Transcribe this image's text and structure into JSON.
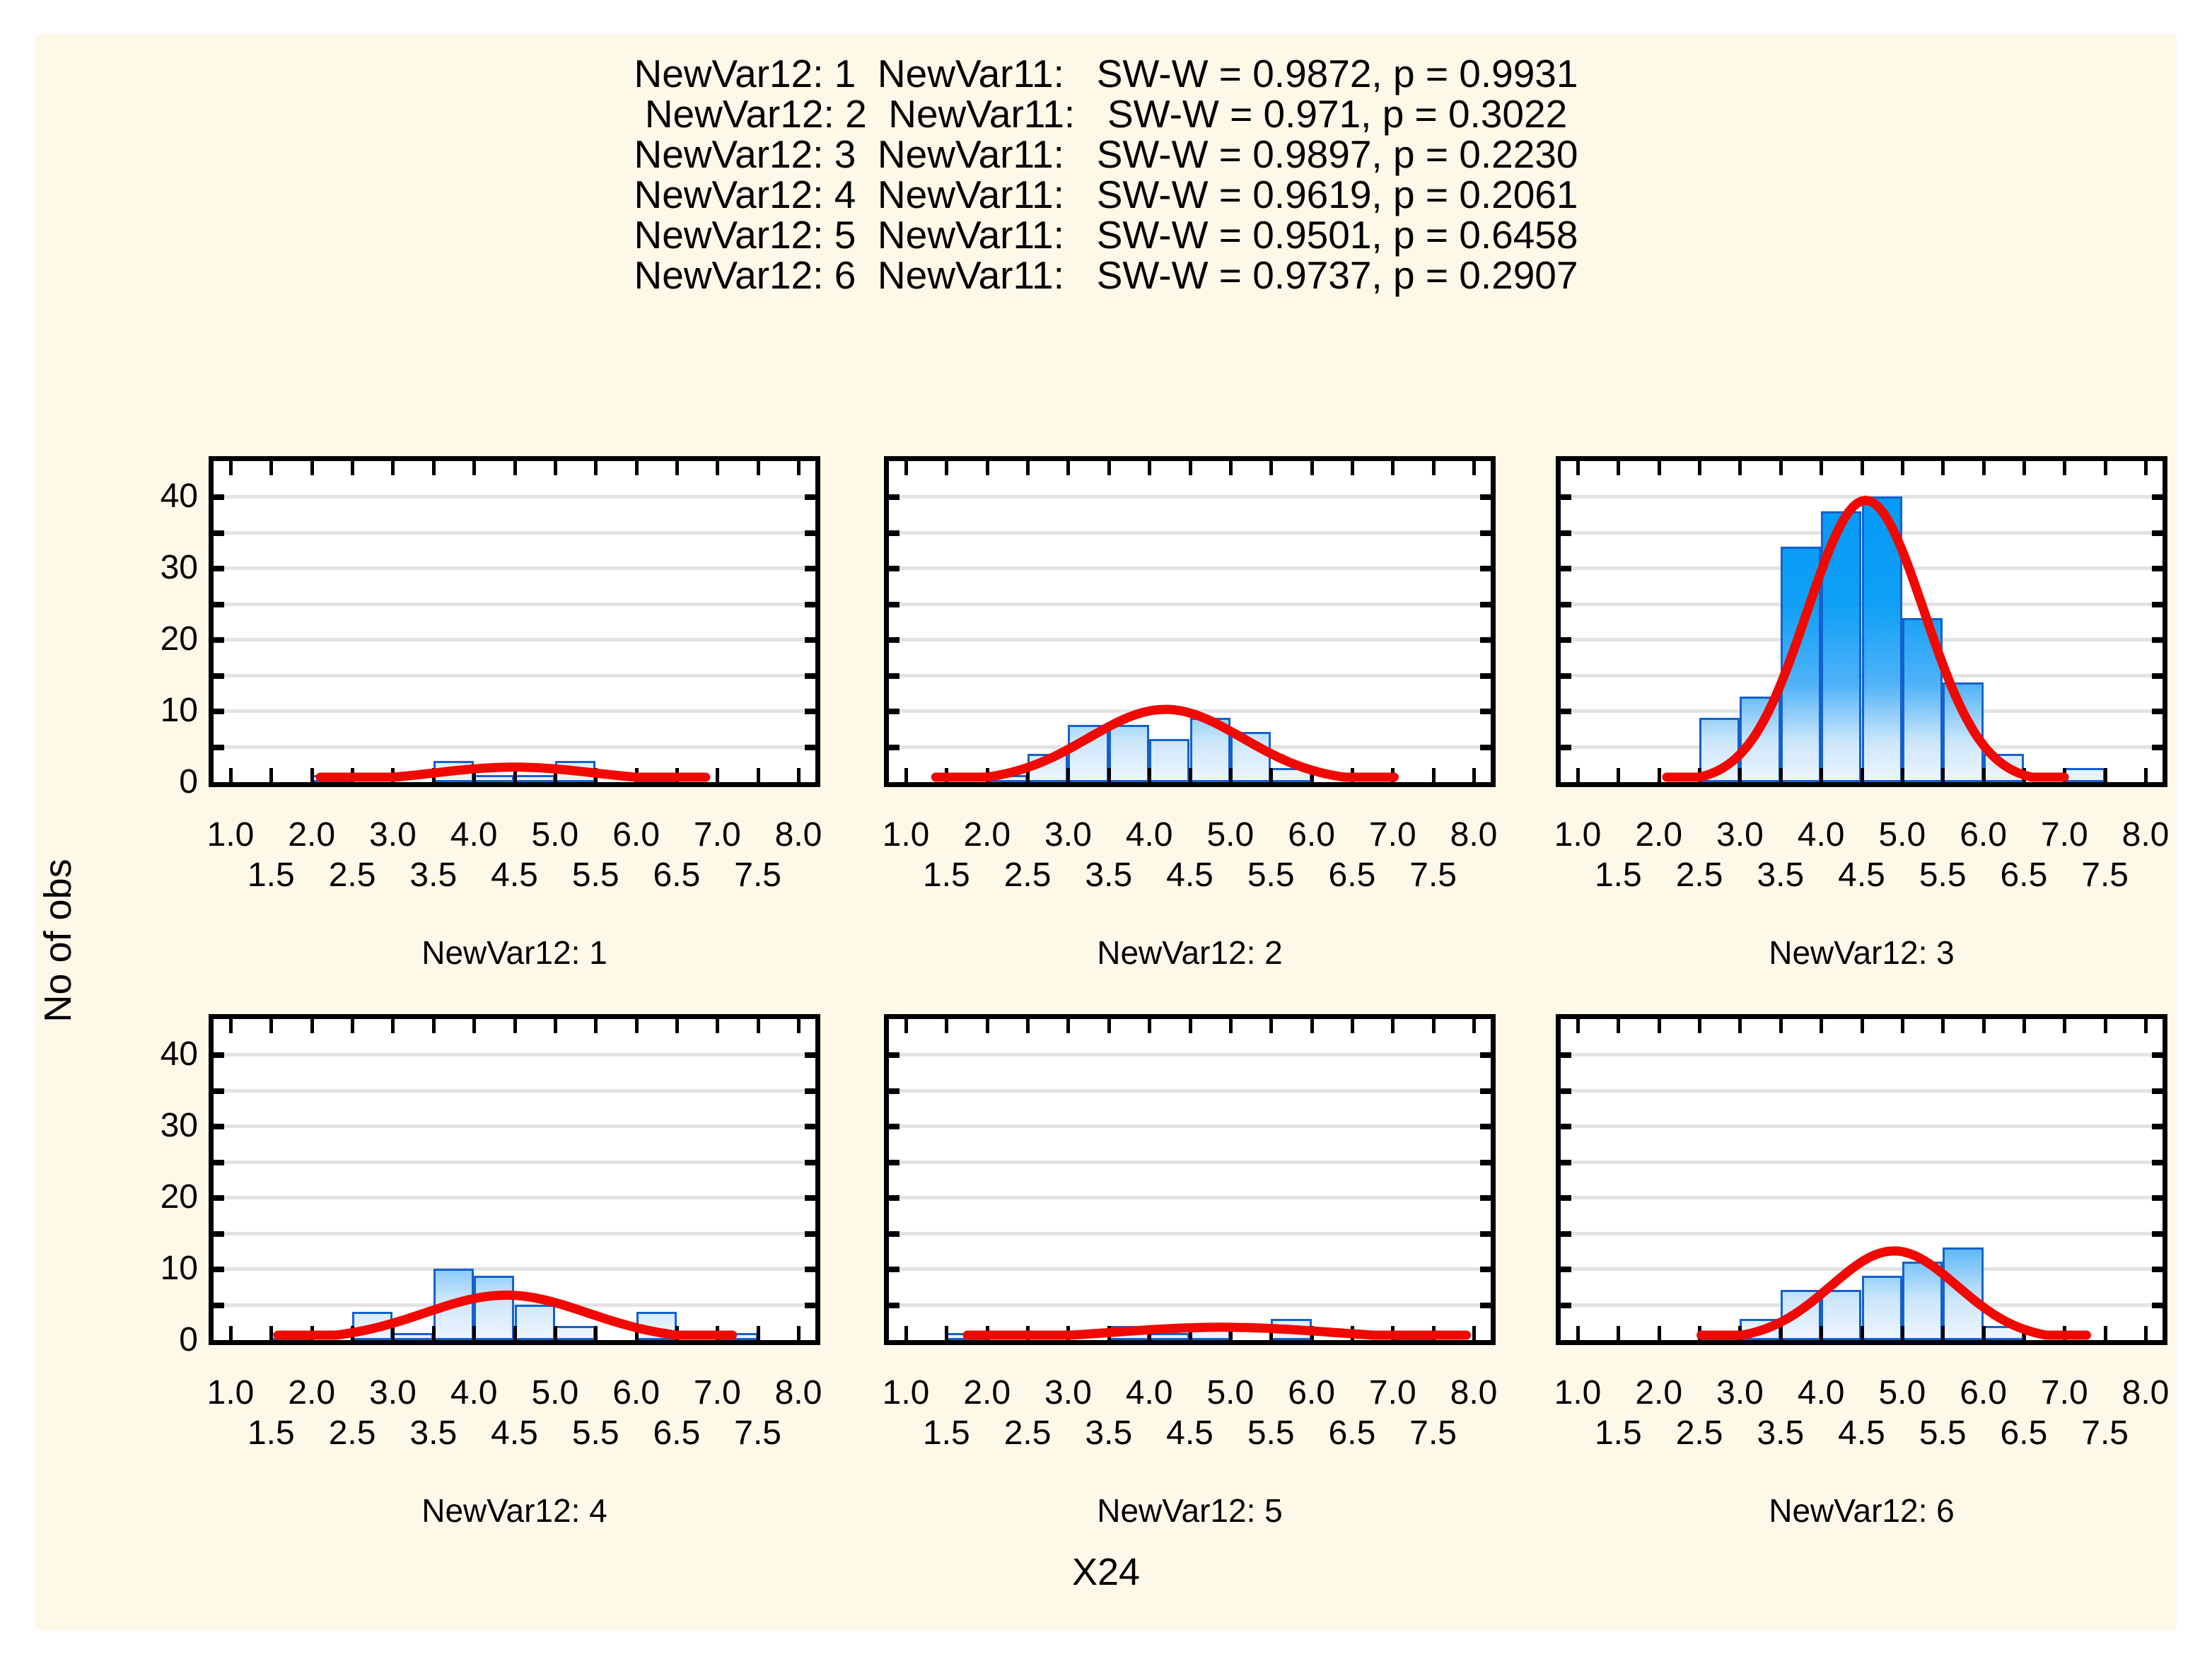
{
  "header": {
    "lines": [
      "NewVar12: 1  NewVar11:   SW-W = 0.9872, p = 0.9931",
      "NewVar12: 2  NewVar11:   SW-W = 0.971, p = 0.3022",
      "NewVar12: 3  NewVar11:   SW-W = 0.9897, p = 0.2230",
      "NewVar12: 4  NewVar11:   SW-W = 0.9619, p = 0.2061",
      "NewVar12: 5  NewVar11:   SW-W = 0.9501, p = 0.6458",
      "NewVar12: 6  NewVar11:   SW-W = 0.9737, p = 0.2907"
    ]
  },
  "axis": {
    "y_label": "No of obs",
    "x_label": "X24",
    "x_major_labels": [
      "1.0",
      "2.0",
      "3.0",
      "4.0",
      "5.0",
      "6.0",
      "7.0",
      "8.0"
    ],
    "x_minor_labels": [
      "1.5",
      "2.5",
      "3.5",
      "4.5",
      "5.5",
      "6.5",
      "7.5"
    ],
    "y_tick_labels": [
      "0",
      "10",
      "20",
      "30",
      "40"
    ],
    "x_range": [
      1.0,
      8.0
    ],
    "y_range": [
      0,
      45
    ],
    "x_tick_step": 0.5,
    "y_grid_step": 5
  },
  "colors": {
    "page_bg": "#FFFFFF",
    "panel_bg": "#FEF8E8",
    "plot_bg": "#FFFFFF",
    "gridline": "#E3E3E3",
    "axis": "#000000",
    "bar_border": "#1461CD",
    "bar_fill_top": "#0098F8",
    "bar_fill_bottom": "#EDF5FD",
    "curve": "#F10800",
    "text": "#000000"
  },
  "chart_data": [
    {
      "type": "bar",
      "subtype": "histogram-with-normal-curve",
      "title": "NewVar12: 1",
      "sw_w": 0.9872,
      "p": 0.9931,
      "bin_width": 0.5,
      "bins": [
        {
          "x": 2.0,
          "count": 1
        },
        {
          "x": 3.5,
          "count": 3
        },
        {
          "x": 4.0,
          "count": 1
        },
        {
          "x": 4.5,
          "count": 1
        },
        {
          "x": 5.0,
          "count": 3
        },
        {
          "x": 6.0,
          "count": 1
        }
      ],
      "normal_curve": {
        "peak": 2.1,
        "mean": 4.5,
        "sd": 1.0
      }
    },
    {
      "type": "bar",
      "subtype": "histogram-with-normal-curve",
      "title": "NewVar12: 2",
      "sw_w": 0.971,
      "p": 0.3022,
      "bin_width": 0.5,
      "bins": [
        {
          "x": 2.0,
          "count": 1
        },
        {
          "x": 2.5,
          "count": 4
        },
        {
          "x": 3.0,
          "count": 8
        },
        {
          "x": 3.5,
          "count": 8
        },
        {
          "x": 4.0,
          "count": 6
        },
        {
          "x": 4.5,
          "count": 9
        },
        {
          "x": 5.0,
          "count": 7
        },
        {
          "x": 5.5,
          "count": 2
        }
      ],
      "normal_curve": {
        "peak": 10.2,
        "mean": 4.2,
        "sd": 0.95
      }
    },
    {
      "type": "bar",
      "subtype": "histogram-with-normal-curve",
      "title": "NewVar12: 3",
      "sw_w": 0.9897,
      "p": 0.223,
      "bin_width": 0.5,
      "bins": [
        {
          "x": 2.5,
          "count": 9
        },
        {
          "x": 3.0,
          "count": 12
        },
        {
          "x": 3.5,
          "count": 33
        },
        {
          "x": 4.0,
          "count": 38
        },
        {
          "x": 4.5,
          "count": 40
        },
        {
          "x": 5.0,
          "count": 23
        },
        {
          "x": 5.5,
          "count": 14
        },
        {
          "x": 6.0,
          "count": 4
        },
        {
          "x": 7.0,
          "count": 2
        }
      ],
      "normal_curve": {
        "peak": 39.5,
        "mean": 4.55,
        "sd": 0.72
      }
    },
    {
      "type": "bar",
      "subtype": "histogram-with-normal-curve",
      "title": "NewVar12: 4",
      "sw_w": 0.9619,
      "p": 0.2061,
      "bin_width": 0.5,
      "bins": [
        {
          "x": 1.5,
          "count": 1
        },
        {
          "x": 2.5,
          "count": 4
        },
        {
          "x": 3.0,
          "count": 1
        },
        {
          "x": 3.5,
          "count": 10
        },
        {
          "x": 4.0,
          "count": 9
        },
        {
          "x": 4.5,
          "count": 5
        },
        {
          "x": 5.0,
          "count": 2
        },
        {
          "x": 6.0,
          "count": 4
        },
        {
          "x": 7.0,
          "count": 1
        }
      ],
      "normal_curve": {
        "peak": 6.3,
        "mean": 4.4,
        "sd": 1.0
      }
    },
    {
      "type": "bar",
      "subtype": "histogram-with-normal-curve",
      "title": "NewVar12: 5",
      "sw_w": 0.9501,
      "p": 0.6458,
      "bin_width": 0.5,
      "bins": [
        {
          "x": 1.5,
          "count": 1
        },
        {
          "x": 3.5,
          "count": 2
        },
        {
          "x": 4.0,
          "count": 1
        },
        {
          "x": 4.5,
          "count": 2
        },
        {
          "x": 5.5,
          "count": 3
        },
        {
          "x": 7.0,
          "count": 1
        }
      ],
      "normal_curve": {
        "peak": 1.8,
        "mean": 4.9,
        "sd": 1.35
      }
    },
    {
      "type": "bar",
      "subtype": "histogram-with-normal-curve",
      "title": "NewVar12: 6",
      "sw_w": 0.9737,
      "p": 0.2907,
      "bin_width": 0.5,
      "bins": [
        {
          "x": 2.5,
          "count": 1
        },
        {
          "x": 3.0,
          "count": 3
        },
        {
          "x": 3.5,
          "count": 7
        },
        {
          "x": 4.0,
          "count": 7
        },
        {
          "x": 4.5,
          "count": 9
        },
        {
          "x": 5.0,
          "count": 11
        },
        {
          "x": 5.5,
          "count": 13
        },
        {
          "x": 6.0,
          "count": 2
        }
      ],
      "normal_curve": {
        "peak": 12.5,
        "mean": 4.9,
        "sd": 0.78
      }
    }
  ]
}
